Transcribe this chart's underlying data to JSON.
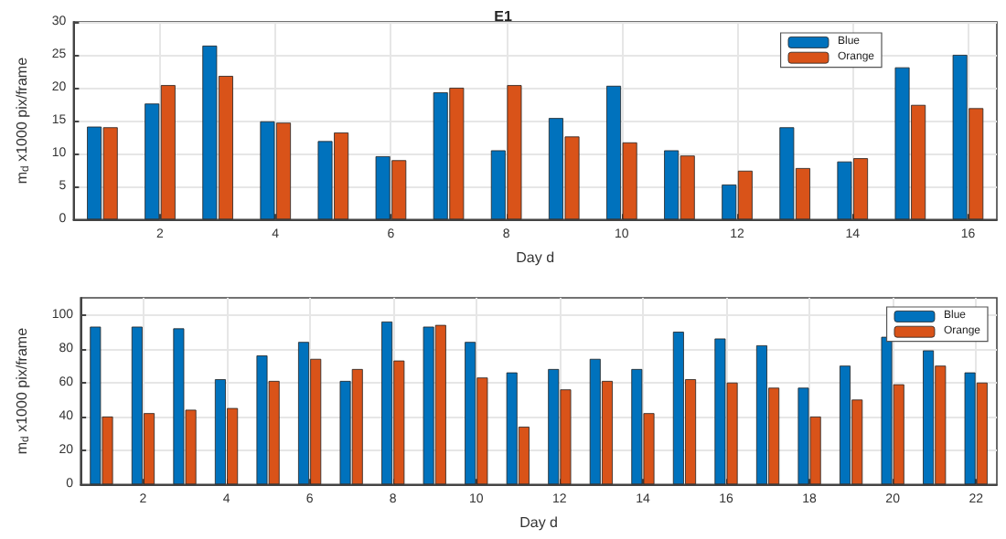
{
  "chart_data": [
    {
      "type": "bar",
      "title": "E1",
      "xlabel": "Day d",
      "ylabel": "m$_{d}$ x1000 pix/frame",
      "x": [
        1,
        2,
        3,
        4,
        5,
        6,
        7,
        8,
        9,
        10,
        11,
        12,
        13,
        14,
        15,
        16
      ],
      "xlim": [
        0.5,
        16.5
      ],
      "xticks": [
        2,
        4,
        6,
        8,
        10,
        12,
        14,
        16
      ],
      "ylim": [
        0,
        30
      ],
      "yticks": [
        0,
        5,
        10,
        15,
        20,
        25,
        30
      ],
      "grid": true,
      "legend": "top right",
      "series": [
        {
          "name": "Blue",
          "color": "#0072bd",
          "values": [
            14.1,
            17.6,
            26.4,
            14.9,
            11.9,
            9.6,
            19.3,
            10.5,
            15.4,
            20.3,
            10.5,
            5.3,
            14.0,
            8.8,
            23.1,
            25.0
          ]
        },
        {
          "name": "Orange",
          "color": "#d95319",
          "values": [
            14.0,
            20.4,
            21.8,
            14.7,
            13.2,
            9.0,
            20.0,
            20.4,
            12.6,
            11.7,
            9.7,
            7.4,
            7.8,
            9.3,
            17.4,
            16.9
          ]
        }
      ]
    },
    {
      "type": "bar",
      "xlabel": "Day d",
      "ylabel": "m$_{d}$ x1000 pix/frame",
      "x": [
        1,
        2,
        3,
        4,
        5,
        6,
        7,
        8,
        9,
        10,
        11,
        12,
        13,
        14,
        15,
        16,
        17,
        18,
        19,
        20,
        21,
        22
      ],
      "xlim": [
        0.5,
        22.5
      ],
      "xticks": [
        2,
        4,
        6,
        8,
        10,
        12,
        14,
        16,
        18,
        20,
        22
      ],
      "ylim": [
        0,
        110
      ],
      "yticks": [
        0,
        20,
        40,
        60,
        80,
        100
      ],
      "grid": true,
      "legend": "top right",
      "series": [
        {
          "name": "Blue",
          "color": "#0072bd",
          "values": [
            93,
            93,
            92,
            62,
            76,
            84,
            61,
            96,
            93,
            84,
            66,
            68,
            74,
            68,
            90,
            86,
            82,
            57,
            70,
            87,
            79,
            66
          ]
        },
        {
          "name": "Orange",
          "color": "#d95319",
          "values": [
            40,
            42,
            44,
            45,
            61,
            74,
            68,
            73,
            94,
            63,
            34,
            56,
            61,
            42,
            62,
            60,
            57,
            40,
            50,
            59,
            70,
            60
          ]
        }
      ]
    }
  ]
}
